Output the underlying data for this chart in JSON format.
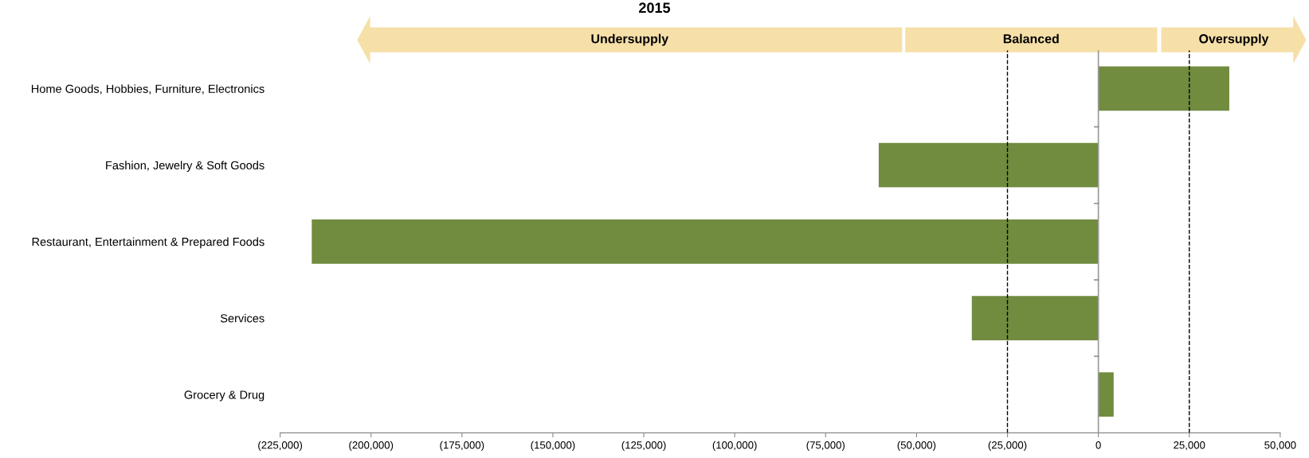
{
  "chart_data": {
    "type": "bar",
    "orientation": "horizontal",
    "title": "2015",
    "categories": [
      "Home Goods, Hobbies, Furniture, Electronics",
      "Fashion, Jewelry & Soft Goods",
      "Restaurant, Entertainment & Prepared Foods",
      "Services",
      "Grocery & Drug"
    ],
    "values": [
      36000,
      -60400,
      -216300,
      -34800,
      4200
    ],
    "color": "#718b3f",
    "xlim": [
      -225000,
      50000
    ],
    "xticks": [
      {
        "value": -225000,
        "label": "(225,000)"
      },
      {
        "value": -200000,
        "label": "(200,000)"
      },
      {
        "value": -175000,
        "label": "(175,000)"
      },
      {
        "value": -150000,
        "label": "(150,000)"
      },
      {
        "value": -125000,
        "label": "(125,000)"
      },
      {
        "value": -100000,
        "label": "(100,000)"
      },
      {
        "value": -75000,
        "label": "(75,000)"
      },
      {
        "value": -50000,
        "label": "(50,000)"
      },
      {
        "value": -25000,
        "label": "(25,000)"
      },
      0,
      {
        "value": 25000,
        "label": "25,000"
      },
      {
        "value": 50000,
        "label": "50,000"
      }
    ],
    "ref_lines": [
      {
        "axis": "x",
        "value": -25000,
        "color": "#000000",
        "line_style": "dashed"
      },
      {
        "axis": "x",
        "value": 25000,
        "color": "#000000",
        "line_style": "dashed"
      }
    ],
    "annotations": [
      "Undersupply",
      "Balanced",
      "Oversupply"
    ],
    "grid": false
  }
}
